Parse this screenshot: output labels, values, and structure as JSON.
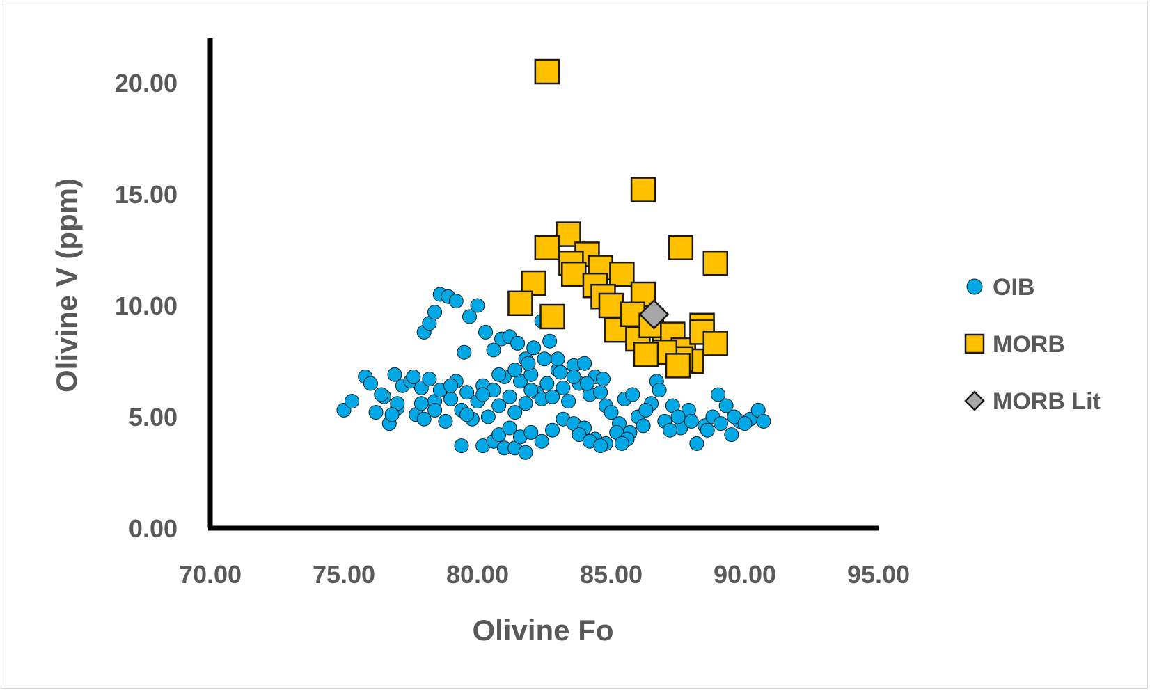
{
  "chart_data": {
    "type": "scatter",
    "xlabel": "Olivine Fo",
    "ylabel": "Olivine V (ppm)",
    "xlim": [
      70,
      95
    ],
    "ylim": [
      0,
      21
    ],
    "x_ticks": [
      "70.00",
      "75.00",
      "80.00",
      "85.00",
      "90.00",
      "95.00"
    ],
    "y_ticks": [
      "0.00",
      "5.00",
      "10.00",
      "15.00",
      "20.00"
    ],
    "legend_position": "right",
    "grid": false,
    "series": [
      {
        "name": "OIB",
        "marker": "circle",
        "color": "#00a9e6",
        "points": [
          [
            75.0,
            5.3
          ],
          [
            75.3,
            5.7
          ],
          [
            75.8,
            6.8
          ],
          [
            76.0,
            6.5
          ],
          [
            76.2,
            5.2
          ],
          [
            76.5,
            5.9
          ],
          [
            76.7,
            4.7
          ],
          [
            76.9,
            6.9
          ],
          [
            77.0,
            5.4
          ],
          [
            77.2,
            6.4
          ],
          [
            77.5,
            6.6
          ],
          [
            77.7,
            5.1
          ],
          [
            77.9,
            6.3
          ],
          [
            78.0,
            4.9
          ],
          [
            78.2,
            6.7
          ],
          [
            78.4,
            5.7
          ],
          [
            78.6,
            6.2
          ],
          [
            78.8,
            4.8
          ],
          [
            79.0,
            5.8
          ],
          [
            79.2,
            6.6
          ],
          [
            79.4,
            5.3
          ],
          [
            79.6,
            6.1
          ],
          [
            79.8,
            4.9
          ],
          [
            80.0,
            5.7
          ],
          [
            80.2,
            6.4
          ],
          [
            80.4,
            5.0
          ],
          [
            80.6,
            6.2
          ],
          [
            80.8,
            5.5
          ],
          [
            81.0,
            6.8
          ],
          [
            81.2,
            5.9
          ],
          [
            81.4,
            5.2
          ],
          [
            81.6,
            6.6
          ],
          [
            81.8,
            5.6
          ],
          [
            82.0,
            6.9
          ],
          [
            82.2,
            6.1
          ],
          [
            82.4,
            5.8
          ],
          [
            82.6,
            6.5
          ],
          [
            82.8,
            5.9
          ],
          [
            83.0,
            7.1
          ],
          [
            83.2,
            6.3
          ],
          [
            83.4,
            5.7
          ],
          [
            83.6,
            7.3
          ],
          [
            83.8,
            6.5
          ],
          [
            84.0,
            7.4
          ],
          [
            84.2,
            6.0
          ],
          [
            84.4,
            6.8
          ],
          [
            84.6,
            6.1
          ],
          [
            84.8,
            5.5
          ],
          [
            85.0,
            5.2
          ],
          [
            85.3,
            4.7
          ],
          [
            85.5,
            5.8
          ],
          [
            85.7,
            4.3
          ],
          [
            86.0,
            5.0
          ],
          [
            86.2,
            4.6
          ],
          [
            86.5,
            5.6
          ],
          [
            86.7,
            6.6
          ],
          [
            87.0,
            4.8
          ],
          [
            87.3,
            5.5
          ],
          [
            87.6,
            4.5
          ],
          [
            87.9,
            5.3
          ],
          [
            88.2,
            3.8
          ],
          [
            88.5,
            4.6
          ],
          [
            88.8,
            5.0
          ],
          [
            89.0,
            6.0
          ],
          [
            89.3,
            5.5
          ],
          [
            89.5,
            4.2
          ],
          [
            89.8,
            4.8
          ],
          [
            90.2,
            4.9
          ],
          [
            90.5,
            5.3
          ],
          [
            90.7,
            4.8
          ],
          [
            78.0,
            8.8
          ],
          [
            78.2,
            9.2
          ],
          [
            78.4,
            9.7
          ],
          [
            78.6,
            10.5
          ],
          [
            78.9,
            10.4
          ],
          [
            79.2,
            10.2
          ],
          [
            79.5,
            7.9
          ],
          [
            79.7,
            9.5
          ],
          [
            80.0,
            10.0
          ],
          [
            80.3,
            8.8
          ],
          [
            80.6,
            8.0
          ],
          [
            80.9,
            8.5
          ],
          [
            81.2,
            8.6
          ],
          [
            81.5,
            8.3
          ],
          [
            81.8,
            7.6
          ],
          [
            82.1,
            8.1
          ],
          [
            82.4,
            9.3
          ],
          [
            82.7,
            8.4
          ],
          [
            83.0,
            7.6
          ],
          [
            82.0,
            6.2
          ],
          [
            80.2,
            3.7
          ],
          [
            80.6,
            3.9
          ],
          [
            81.0,
            3.6
          ],
          [
            81.4,
            3.6
          ],
          [
            81.8,
            3.4
          ],
          [
            82.4,
            3.9
          ],
          [
            79.4,
            3.7
          ],
          [
            80.8,
            4.2
          ],
          [
            81.2,
            4.5
          ],
          [
            81.6,
            4.1
          ],
          [
            82.0,
            4.3
          ],
          [
            82.8,
            4.4
          ],
          [
            83.2,
            4.9
          ],
          [
            83.6,
            4.7
          ],
          [
            84.0,
            4.5
          ],
          [
            84.4,
            4.0
          ],
          [
            84.8,
            3.8
          ],
          [
            85.2,
            4.3
          ],
          [
            85.6,
            4.0
          ],
          [
            83.8,
            4.2
          ],
          [
            84.2,
            3.9
          ],
          [
            84.6,
            3.7
          ],
          [
            85.4,
            3.8
          ],
          [
            76.4,
            6.0
          ],
          [
            77.0,
            5.6
          ],
          [
            77.6,
            6.8
          ],
          [
            78.4,
            5.3
          ],
          [
            79.6,
            5.1
          ],
          [
            80.2,
            6.0
          ],
          [
            80.8,
            6.9
          ],
          [
            81.4,
            7.1
          ],
          [
            81.9,
            7.4
          ],
          [
            82.5,
            7.6
          ],
          [
            83.1,
            7.0
          ],
          [
            83.6,
            6.8
          ],
          [
            84.1,
            6.5
          ],
          [
            84.7,
            6.7
          ],
          [
            79.0,
            6.4
          ],
          [
            77.9,
            5.6
          ],
          [
            76.8,
            5.1
          ],
          [
            85.8,
            6.0
          ],
          [
            86.3,
            5.3
          ],
          [
            86.8,
            6.2
          ],
          [
            87.2,
            4.4
          ],
          [
            87.5,
            5.0
          ],
          [
            88.0,
            4.8
          ],
          [
            88.6,
            4.4
          ],
          [
            89.1,
            4.7
          ],
          [
            89.6,
            5.0
          ],
          [
            90.0,
            4.7
          ]
        ]
      },
      {
        "name": "MORB",
        "marker": "square",
        "color": "#ffc000",
        "points": [
          [
            82.6,
            20.5
          ],
          [
            86.2,
            15.2
          ],
          [
            83.4,
            13.2
          ],
          [
            82.6,
            12.6
          ],
          [
            84.1,
            12.3
          ],
          [
            83.5,
            11.9
          ],
          [
            84.6,
            11.7
          ],
          [
            87.6,
            12.6
          ],
          [
            88.9,
            11.9
          ],
          [
            83.6,
            11.4
          ],
          [
            84.4,
            10.9
          ],
          [
            85.4,
            11.4
          ],
          [
            82.1,
            11.0
          ],
          [
            81.6,
            10.1
          ],
          [
            84.7,
            10.4
          ],
          [
            86.2,
            10.5
          ],
          [
            82.8,
            9.5
          ],
          [
            85.0,
            10.0
          ],
          [
            86.5,
            9.3
          ],
          [
            87.0,
            8.4
          ],
          [
            85.2,
            8.9
          ],
          [
            85.8,
            9.6
          ],
          [
            86.0,
            8.5
          ],
          [
            86.5,
            9.1
          ],
          [
            87.3,
            8.7
          ],
          [
            87.7,
            8.0
          ],
          [
            88.0,
            7.5
          ],
          [
            88.4,
            9.1
          ],
          [
            88.4,
            8.8
          ],
          [
            88.9,
            8.3
          ],
          [
            87.6,
            7.6
          ],
          [
            87.0,
            7.9
          ],
          [
            86.3,
            7.8
          ],
          [
            87.5,
            7.3
          ]
        ]
      },
      {
        "name": "MORB Lit",
        "marker": "diamond",
        "color": "#a6a6a6",
        "points": [
          [
            86.6,
            9.6
          ]
        ]
      }
    ]
  }
}
